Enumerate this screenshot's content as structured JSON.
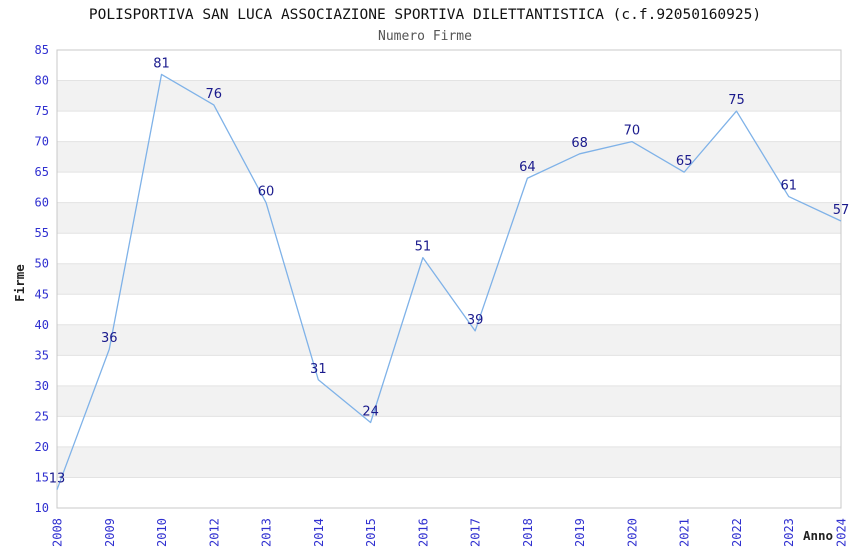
{
  "chart_data": {
    "type": "line",
    "title": "POLISPORTIVA SAN LUCA ASSOCIAZIONE SPORTIVA DILETTANTISTICA (c.f.92050160925)",
    "subtitle": "Numero Firme",
    "xlabel": "Anno",
    "ylabel": "Firme",
    "categories": [
      "2008",
      "2009",
      "2010",
      "2012",
      "2013",
      "2014",
      "2015",
      "2016",
      "2017",
      "2018",
      "2019",
      "2020",
      "2021",
      "2022",
      "2023",
      "2024"
    ],
    "values": [
      13,
      36,
      81,
      76,
      60,
      31,
      24,
      51,
      39,
      64,
      68,
      70,
      65,
      75,
      61,
      57
    ],
    "ylim": [
      10,
      85
    ],
    "ytick_step": 5,
    "grid": "horizontal-bands",
    "legend_position": "none",
    "markers": "none",
    "x_tick_rotation": -90,
    "colors": {
      "line": "#7FB2E8",
      "data_label": "#1A1A8C",
      "tick_label": "#3030D0",
      "band_fill": "#F2F2F2",
      "grid_line": "#E3E3E3",
      "plot_border": "#C8C8C8",
      "title": "#111111",
      "subtitle": "#555555",
      "axis_title": "#222222",
      "background": "#FFFFFF"
    }
  }
}
